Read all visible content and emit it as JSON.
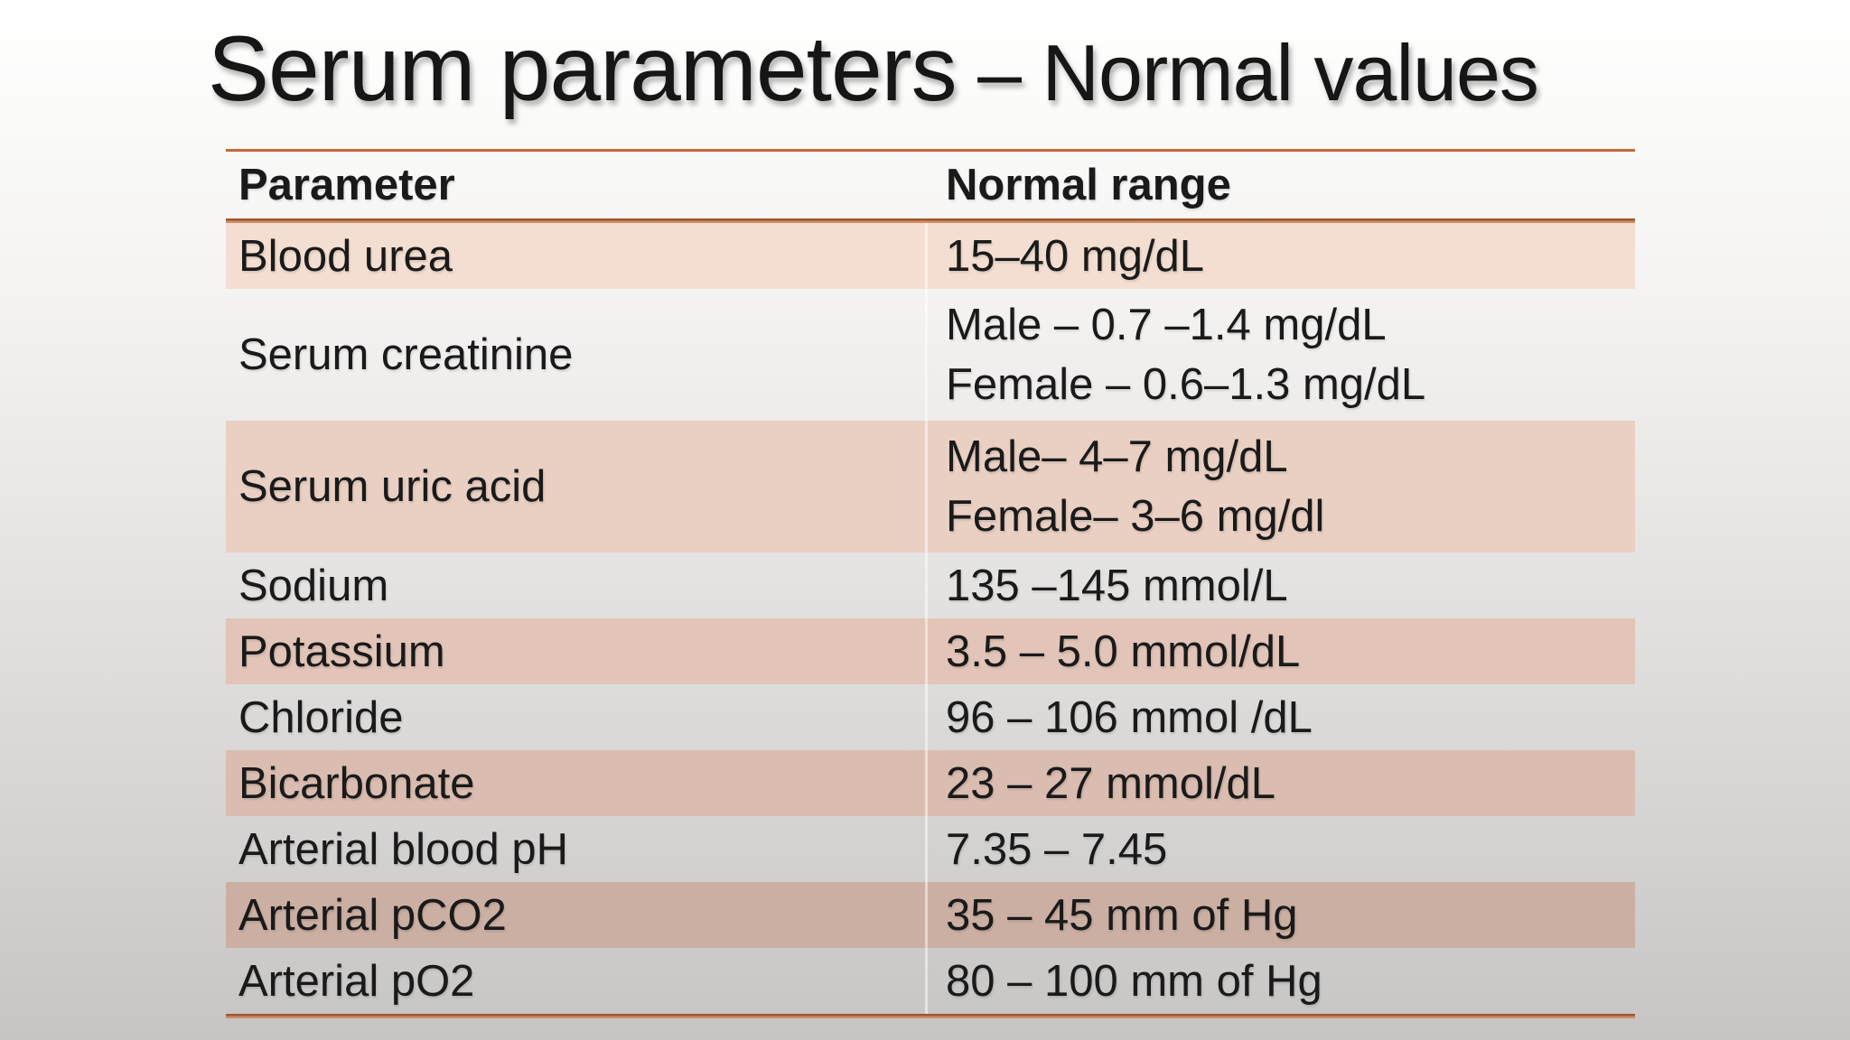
{
  "slide": {
    "title": {
      "main": "Serum parameters",
      "separator": " – ",
      "sub": "Normal values"
    },
    "table": {
      "headers": {
        "parameter": "Parameter",
        "range": "Normal range"
      },
      "rows": [
        {
          "parameter": "Blood urea",
          "range_lines": [
            "15–40 mg/dL"
          ]
        },
        {
          "parameter": "Serum creatinine",
          "range_lines": [
            "Male – 0.7 –1.4 mg/dL",
            "Female – 0.6–1.3 mg/dL"
          ]
        },
        {
          "parameter": "Serum uric acid",
          "range_lines": [
            "Male– 4–7 mg/dL",
            "Female– 3–6 mg/dl"
          ]
        },
        {
          "parameter": "Sodium",
          "range_lines": [
            "135 –145 mmol/L"
          ]
        },
        {
          "parameter": "Potassium",
          "range_lines": [
            "3.5 – 5.0 mmol/dL"
          ]
        },
        {
          "parameter": "Chloride",
          "range_lines": [
            "96 – 106 mmol /dL"
          ]
        },
        {
          "parameter": "Bicarbonate",
          "range_lines": [
            "23 – 27 mmol/dL"
          ]
        },
        {
          "parameter": "Arterial blood pH",
          "range_lines": [
            "7.35 – 7.45"
          ]
        },
        {
          "parameter": "Arterial pCO2",
          "range_lines": [
            "35 – 45 mm of Hg"
          ]
        },
        {
          "parameter": "Arterial pO2",
          "range_lines": [
            "80 – 100 mm of Hg"
          ]
        }
      ]
    },
    "colors": {
      "accent_rule": "#c06a3a",
      "accent_rule_dark": "#9e5632",
      "accent_rule_light": "#cf8d67",
      "band_blood_urea": "#f3ded1",
      "band_serum_uric_acid": "#e9d0c3",
      "band_potassium": "#e2c5b8",
      "band_bicarbonate": "#dabdb0",
      "band_arterial_pco2": "#ccafa3",
      "text": "#1a1a1a",
      "background_top": "#ffffff",
      "background_bottom": "#c6c5c4"
    }
  }
}
